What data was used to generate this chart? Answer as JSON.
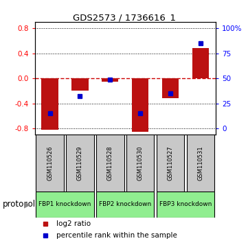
{
  "title": "GDS2573 / 1736616_1",
  "samples": [
    "GSM110526",
    "GSM110529",
    "GSM110528",
    "GSM110530",
    "GSM110527",
    "GSM110531"
  ],
  "log2_ratios": [
    -0.82,
    -0.2,
    -0.05,
    -0.85,
    -0.32,
    0.48
  ],
  "percentile_ranks_pct": [
    15,
    32,
    49,
    15,
    35,
    85
  ],
  "protocol_groups": [
    {
      "label": "FBP1 knockdown",
      "start": 0,
      "end": 1
    },
    {
      "label": "FBP2 knockdown",
      "start": 2,
      "end": 3
    },
    {
      "label": "FBP3 knockdown",
      "start": 4,
      "end": 5
    }
  ],
  "ylim": [
    -0.9,
    0.9
  ],
  "yticks_left": [
    -0.8,
    -0.4,
    0.0,
    0.4,
    0.8
  ],
  "yticks_right": [
    0,
    25,
    50,
    75,
    100
  ],
  "bar_color": "#BB1111",
  "dot_color": "#0000CC",
  "zero_line_color": "#CC0000",
  "bg_color": "white",
  "sample_box_color": "#C8C8C8",
  "protocol_box_color": "#90EE90",
  "bar_width": 0.55,
  "xlim_left": -0.5,
  "xlim_right": 5.5
}
